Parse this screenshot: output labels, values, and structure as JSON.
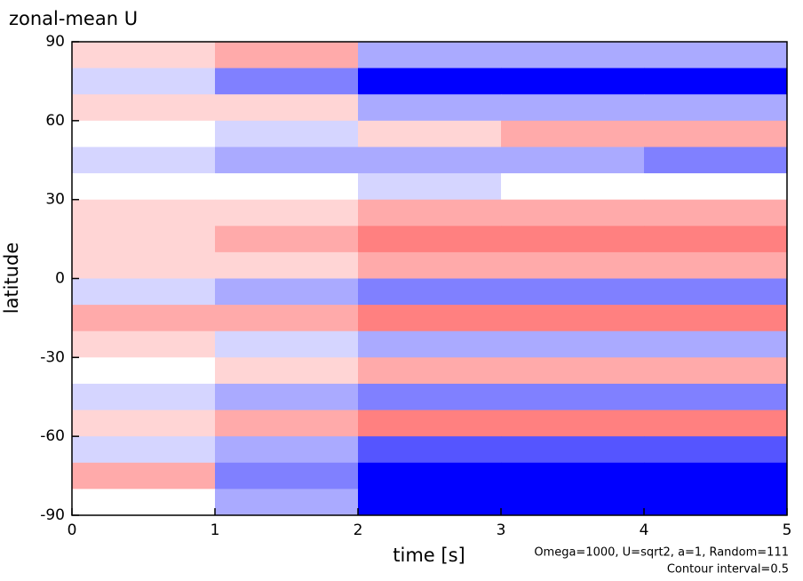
{
  "chart_data": {
    "type": "heatmap",
    "title": "zonal-mean U",
    "xlabel": "time [s]",
    "ylabel": "latitude",
    "notes": [
      "Omega=1000, U=sqrt2, a=1, Random=111",
      "Contour interval=0.5"
    ],
    "x": [
      0.5,
      1.5,
      2.5,
      3.5,
      4.5
    ],
    "y": [
      85,
      75,
      65,
      55,
      45,
      35,
      25,
      15,
      5,
      -5,
      -15,
      -25,
      -35,
      -45,
      -55,
      -65,
      -75,
      -85
    ],
    "z": [
      [
        0.5,
        1,
        -1,
        -1,
        -1
      ],
      [
        -0.5,
        -1.5,
        -5,
        -5,
        -5
      ],
      [
        0.5,
        0.5,
        -1,
        -1,
        -1
      ],
      [
        0,
        -0.5,
        0.5,
        1,
        1
      ],
      [
        -0.5,
        -1,
        -1,
        -1,
        -1.5
      ],
      [
        0,
        0,
        -0.5,
        0,
        0
      ],
      [
        0.5,
        0.5,
        1,
        1,
        1
      ],
      [
        0.5,
        1,
        1.5,
        1.5,
        1.5
      ],
      [
        0.5,
        0.5,
        1,
        1,
        1
      ],
      [
        -0.5,
        -1,
        -1.5,
        -1.5,
        -1.5
      ],
      [
        1,
        1,
        1.5,
        1.5,
        1.5
      ],
      [
        0.5,
        -0.5,
        -1,
        -1,
        -1
      ],
      [
        0,
        0.5,
        1,
        1,
        1
      ],
      [
        -0.5,
        -1,
        -1.5,
        -1.5,
        -1.5
      ],
      [
        0.5,
        1,
        1.5,
        1.5,
        1.5
      ],
      [
        -0.5,
        -1,
        -2,
        -2,
        -2
      ],
      [
        1,
        -1.5,
        -5,
        -5,
        -5
      ],
      [
        0,
        -1,
        -3,
        -3,
        -3
      ]
    ],
    "positive_color": "#ff0000",
    "negative_color": "#0000ff",
    "xlim": [
      0,
      5
    ],
    "ylim": [
      -90,
      90
    ],
    "xticks": [
      0,
      1,
      2,
      3,
      4,
      5
    ],
    "yticks": [
      -90,
      -60,
      -30,
      0,
      30,
      60,
      90
    ]
  }
}
